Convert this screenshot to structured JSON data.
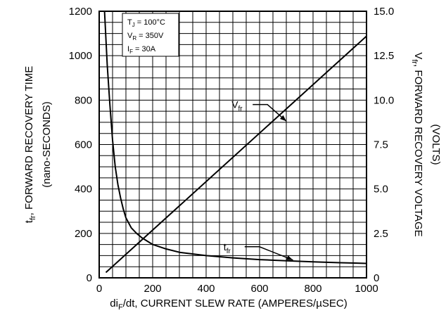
{
  "chart_data": {
    "type": "line",
    "conditions": {
      "tj": {
        "sym": "T",
        "sub": "J",
        "rest": " = 100°C"
      },
      "vr": {
        "sym": "V",
        "sub": "R",
        "rest": " = 350V"
      },
      "if": {
        "sym": "I",
        "sub": "F",
        "rest": " = 30A"
      }
    },
    "xlabel": {
      "pre": "di",
      "sub": "F",
      "post": "/dt, CURRENT SLEW RATE (AMPERES/µSEC)"
    },
    "ylabel_left": {
      "sym": "t",
      "sub": "fr",
      "rest": ", FORWARD RECOVERY TIME",
      "line2": "(nano-SECONDS)"
    },
    "ylabel_right": {
      "sym": "V",
      "sub": "fr",
      "rest": ", FORWARD RECOVERY VOLTAGE",
      "line2": "(VOLTS)"
    },
    "xlim": [
      0,
      1000
    ],
    "ylim_left": [
      0,
      1200
    ],
    "ylim_right": [
      0,
      15
    ],
    "x_ticks": [
      "0",
      "200",
      "400",
      "600",
      "800",
      "1000"
    ],
    "y_left_ticks": [
      "0",
      "200",
      "400",
      "600",
      "800",
      "1000",
      "1200"
    ],
    "y_right_ticks": [
      "0",
      "2.5",
      "5.0",
      "7.5",
      "10.0",
      "12.5",
      "15.0"
    ],
    "grid": true,
    "series": [
      {
        "name": "tfr",
        "sym": "t",
        "sub": "fr",
        "axis": "left",
        "x": [
          20,
          30,
          40,
          50,
          60,
          70,
          80,
          90,
          100,
          120,
          140,
          160,
          180,
          200,
          250,
          300,
          400,
          500,
          600,
          700,
          800,
          900,
          1000
        ],
        "y": [
          1200,
          960,
          780,
          620,
          500,
          420,
          360,
          310,
          270,
          225,
          200,
          180,
          165,
          150,
          130,
          115,
          100,
          90,
          82,
          77,
          72,
          68,
          65
        ]
      },
      {
        "name": "Vfr",
        "sym": "V",
        "sub": "fr",
        "axis": "right",
        "x": [
          25,
          1000
        ],
        "y": [
          0.3,
          13.6
        ]
      }
    ],
    "annotations": [
      {
        "series": "Vfr",
        "label_x": 590,
        "label_y": 780,
        "arrow_to_x": 700,
        "arrow_to_y": 705
      },
      {
        "series": "tfr",
        "label_x": 560,
        "label_y": 140,
        "arrow_to_x": 725,
        "arrow_to_y": 80
      }
    ]
  }
}
